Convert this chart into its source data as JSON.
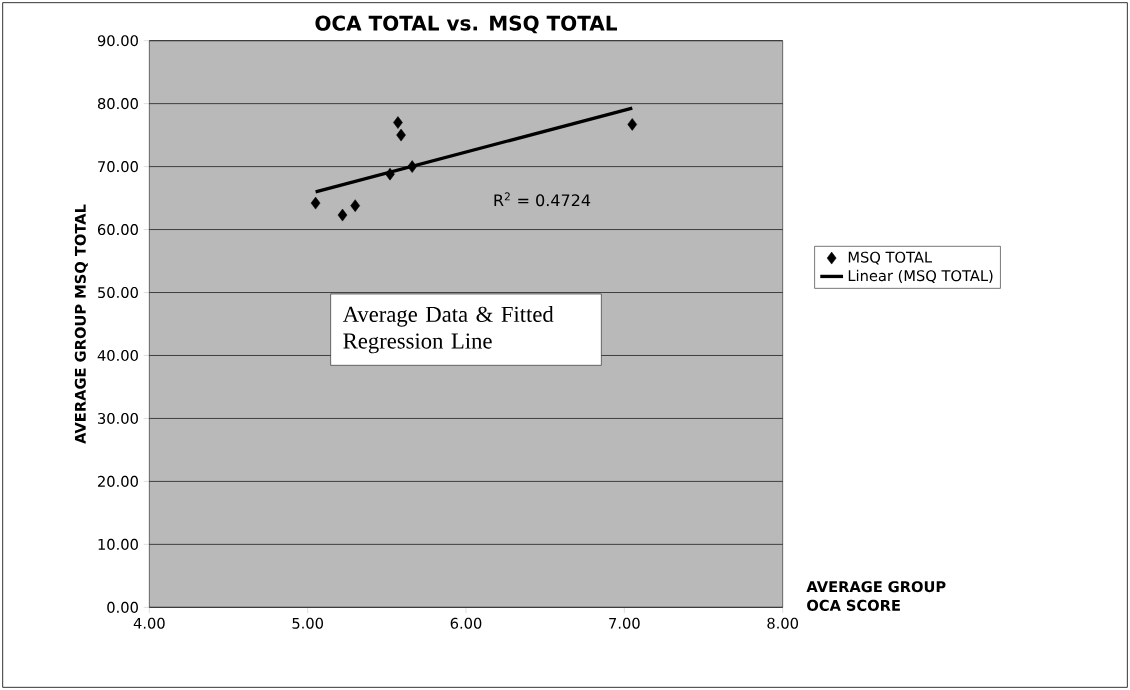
{
  "chart_data": {
    "type": "scatter",
    "title": "OCA TOTAL vs. MSQ TOTAL",
    "xlabel": "AVERAGE GROUP OCA SCORE",
    "ylabel": "AVERAGE GROUP MSQ TOTAL",
    "series": [
      {
        "name": "MSQ TOTAL",
        "color": "#000000",
        "marker": "diamond",
        "x": [
          5.05,
          5.22,
          5.3,
          5.52,
          5.57,
          5.59,
          5.66,
          7.05
        ],
        "values": [
          64.2,
          62.3,
          63.8,
          68.8,
          77.0,
          75.0,
          70.0,
          76.7
        ]
      },
      {
        "name": "Linear (MSQ TOTAL)",
        "type": "line",
        "color": "#000000",
        "marker": "none",
        "line_style": "solid",
        "x": [
          5.05,
          7.05
        ],
        "values": [
          66.0,
          79.3
        ]
      }
    ],
    "annotations": [
      "R$^{2}$ = 0.4724",
      "Average Data & Fitted Regression Line"
    ],
    "xlim": [
      4,
      8
    ],
    "ylim": [
      0,
      90
    ],
    "xticks": [
      {
        "value": 4,
        "label": "4.00"
      },
      {
        "value": 5,
        "label": "5.00"
      },
      {
        "value": 6,
        "label": "6.00"
      },
      {
        "value": 7,
        "label": "7.00"
      },
      {
        "value": 8,
        "label": "8.00"
      }
    ],
    "yticks": [
      {
        "value": 0,
        "label": "0.00"
      },
      {
        "value": 10,
        "label": "10.00"
      },
      {
        "value": 20,
        "label": "20.00"
      },
      {
        "value": 30,
        "label": "30.00"
      },
      {
        "value": 40,
        "label": "40.00"
      },
      {
        "value": 50,
        "label": "50.00"
      },
      {
        "value": 60,
        "label": "60.00"
      },
      {
        "value": 70,
        "label": "70.00"
      },
      {
        "value": 80,
        "label": "80.00"
      },
      {
        "value": 90,
        "label": "90.00"
      }
    ],
    "grid": "y",
    "legend": "right"
  }
}
